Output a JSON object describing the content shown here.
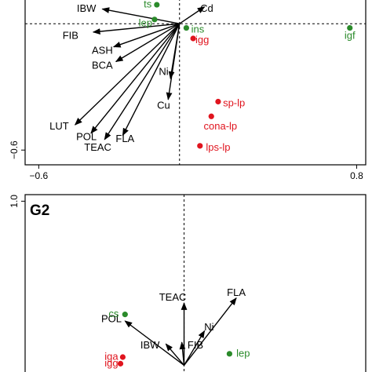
{
  "colors": {
    "green": "#2a8a2a",
    "red": "#e0141e",
    "arrow": "#000000",
    "frame": "#000000"
  },
  "chart_data": [
    {
      "type": "scatter",
      "title": "",
      "panel_label": "",
      "xlabel": "",
      "ylabel": "",
      "xlim": [
        -0.66,
        0.84
      ],
      "ylim": [
        -0.67,
        0.12
      ],
      "x_ticks": [
        {
          "value": -0.6,
          "label": "−0.6"
        },
        {
          "value": 0.8,
          "label": "0.8"
        }
      ],
      "y_ticks": [
        {
          "value": -0.6,
          "label": "−0.6"
        }
      ],
      "reference_lines": {
        "x": 0.02,
        "y": 0.0
      },
      "arrows": [
        {
          "name": "IBW",
          "x": -0.32,
          "y": 0.07,
          "lx": -0.39,
          "ly": 0.07
        },
        {
          "name": "FIB",
          "x": -0.36,
          "y": -0.04,
          "lx": -0.46,
          "ly": -0.06
        },
        {
          "name": "ASH",
          "x": -0.27,
          "y": -0.11,
          "lx": -0.32,
          "ly": -0.13
        },
        {
          "name": "BCA",
          "x": -0.26,
          "y": -0.18,
          "lx": -0.32,
          "ly": -0.2
        },
        {
          "name": "Ni",
          "x": -0.02,
          "y": -0.26,
          "lx": -0.05,
          "ly": -0.23
        },
        {
          "name": "Cu",
          "x": -0.03,
          "y": -0.36,
          "lx": -0.05,
          "ly": -0.39
        },
        {
          "name": "LUT",
          "x": -0.44,
          "y": -0.48,
          "lx": -0.51,
          "ly": -0.49
        },
        {
          "name": "POL",
          "x": -0.37,
          "y": -0.52,
          "lx": -0.39,
          "ly": -0.54
        },
        {
          "name": "TEAC",
          "x": -0.31,
          "y": -0.55,
          "lx": -0.34,
          "ly": -0.59
        },
        {
          "name": "FLA",
          "x": -0.23,
          "y": -0.53,
          "lx": -0.22,
          "ly": -0.55
        },
        {
          "name": "Cd",
          "x": 0.13,
          "y": 0.08,
          "lx": 0.14,
          "ly": 0.07
        }
      ],
      "points": [
        {
          "name": "ts",
          "x": -0.08,
          "y": 0.09,
          "group": "green",
          "lx": -0.12,
          "ly": 0.09
        },
        {
          "name": "lep",
          "x": -0.09,
          "y": 0.02,
          "group": "green",
          "lx": -0.13,
          "ly": 0.0
        },
        {
          "name": "ins",
          "x": 0.05,
          "y": -0.02,
          "group": "green",
          "lx": 0.1,
          "ly": -0.03
        },
        {
          "name": "igf",
          "x": 0.77,
          "y": -0.02,
          "group": "green",
          "lx": 0.77,
          "ly": -0.06
        },
        {
          "name": "igg",
          "x": 0.08,
          "y": -0.07,
          "group": "red",
          "lx": 0.12,
          "ly": -0.08
        },
        {
          "name": "sp-lp",
          "x": 0.19,
          "y": -0.37,
          "group": "red",
          "lx": 0.26,
          "ly": -0.38
        },
        {
          "name": "cona-lp",
          "x": 0.16,
          "y": -0.44,
          "group": "red",
          "lx": 0.2,
          "ly": -0.49
        },
        {
          "name": "lps-lp",
          "x": 0.11,
          "y": -0.58,
          "group": "red",
          "lx": 0.19,
          "ly": -0.59
        }
      ]
    },
    {
      "type": "scatter",
      "title": "",
      "panel_label": "G2",
      "xlabel": "",
      "ylabel": "",
      "xlim": [
        -0.66,
        0.84
      ],
      "ylim": [
        -0.06,
        1.04
      ],
      "x_ticks": [],
      "y_ticks": [
        {
          "value": 1.0,
          "label": "1.0"
        }
      ],
      "reference_lines": {
        "x": 0.04,
        "y": null
      },
      "arrows": [
        {
          "name": "TEAC",
          "x": 0.04,
          "y": 0.38,
          "lx": -0.01,
          "ly": 0.41
        },
        {
          "name": "FLA",
          "x": 0.27,
          "y": 0.41,
          "lx": 0.27,
          "ly": 0.44
        },
        {
          "name": "POL",
          "x": -0.22,
          "y": 0.27,
          "lx": -0.28,
          "ly": 0.28
        },
        {
          "name": "IBW",
          "x": -0.04,
          "y": 0.13,
          "lx": -0.11,
          "ly": 0.12
        },
        {
          "name": "FIB",
          "x": 0.03,
          "y": 0.14,
          "lx": 0.09,
          "ly": 0.12
        },
        {
          "name": "Ni",
          "x": 0.13,
          "y": 0.21,
          "lx": 0.15,
          "ly": 0.23
        }
      ],
      "points": [
        {
          "name": "cs",
          "x": -0.22,
          "y": 0.31,
          "group": "green",
          "lx": -0.27,
          "ly": 0.31
        },
        {
          "name": "lep",
          "x": 0.24,
          "y": 0.07,
          "group": "green",
          "lx": 0.3,
          "ly": 0.07
        },
        {
          "name": "iga",
          "x": -0.23,
          "y": 0.05,
          "group": "red",
          "lx": -0.28,
          "ly": 0.05
        },
        {
          "name": "igg",
          "x": -0.24,
          "y": 0.01,
          "group": "red",
          "lx": -0.28,
          "ly": 0.01
        }
      ]
    }
  ]
}
